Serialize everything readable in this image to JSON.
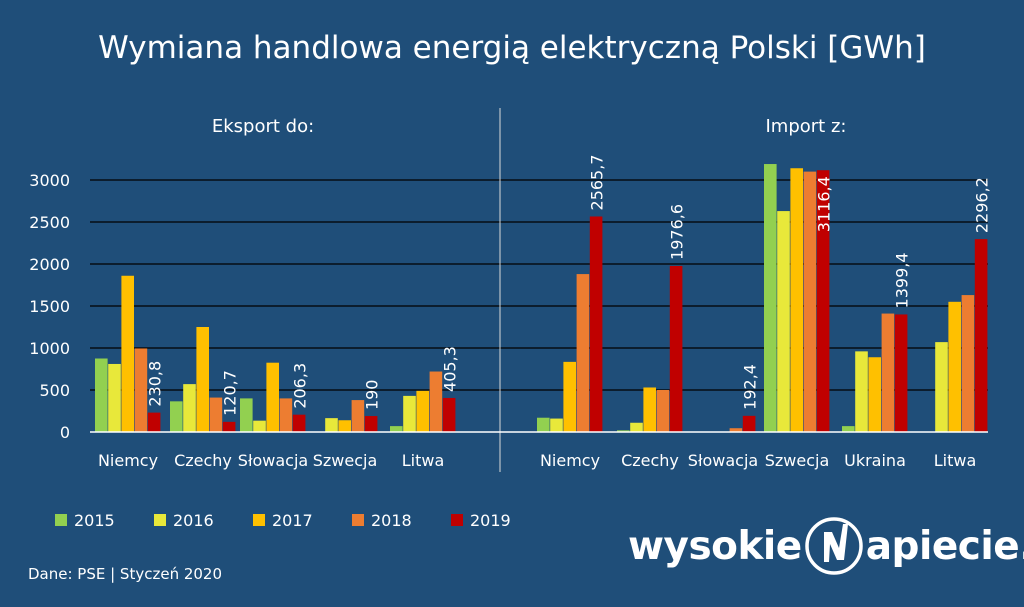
{
  "chart_data": {
    "type": "bar",
    "title": "Wymiana handlowa energią elektryczną Polski [GWh]",
    "ylim": [
      0,
      3000
    ],
    "yticks": [
      0,
      500,
      1000,
      1500,
      2000,
      2500,
      3000
    ],
    "grid": true,
    "legend_position": "bottom-left",
    "series_names": [
      "2015",
      "2016",
      "2017",
      "2018",
      "2019"
    ],
    "series_colors": [
      "#92d050",
      "#e8e83a",
      "#ffc000",
      "#ed7d31",
      "#c00000"
    ],
    "panels": [
      {
        "label": "Eksport do:",
        "categories": [
          "Niemcy",
          "Czechy",
          "Słowacja",
          "Szwecja",
          "Litwa"
        ],
        "series": [
          {
            "name": "2015",
            "values": [
              875,
              365,
              400,
              5,
              70
            ]
          },
          {
            "name": "2016",
            "values": [
              810,
              570,
              135,
              165,
              430
            ]
          },
          {
            "name": "2017",
            "values": [
              1860,
              1250,
              825,
              140,
              490
            ]
          },
          {
            "name": "2018",
            "values": [
              995,
              410,
              400,
              380,
              720
            ]
          },
          {
            "name": "2019",
            "values": [
              230.8,
              120.7,
              206.3,
              190,
              405.3
            ]
          }
        ],
        "labels_2019": [
          "230,8",
          "120,7",
          "206,3",
          "190",
          "405,3"
        ]
      },
      {
        "label": "Import z:",
        "categories": [
          "Niemcy",
          "Czechy",
          "Słowacja",
          "Szwecja",
          "Ukraina",
          "Litwa"
        ],
        "series": [
          {
            "name": "2015",
            "values": [
              170,
              20,
              0,
              3190,
              70,
              0
            ]
          },
          {
            "name": "2016",
            "values": [
              160,
              110,
              0,
              2630,
              960,
              1070
            ]
          },
          {
            "name": "2017",
            "values": [
              835,
              530,
              0,
              3140,
              890,
              1550
            ]
          },
          {
            "name": "2018",
            "values": [
              1880,
              500,
              45,
              3100,
              1410,
              1630
            ]
          },
          {
            "name": "2019",
            "values": [
              2565.7,
              1976.6,
              192.4,
              3116.4,
              1399.4,
              2296.2
            ]
          }
        ],
        "labels_2019": [
          "2565,7",
          "1976,6",
          "192,4",
          "3116,4",
          "1399,4",
          "2296,2"
        ]
      }
    ]
  },
  "logo": {
    "left": "wysokie",
    "right": "apiecie.pl"
  },
  "source": "Dane: PSE  |  Styczeń 2020"
}
